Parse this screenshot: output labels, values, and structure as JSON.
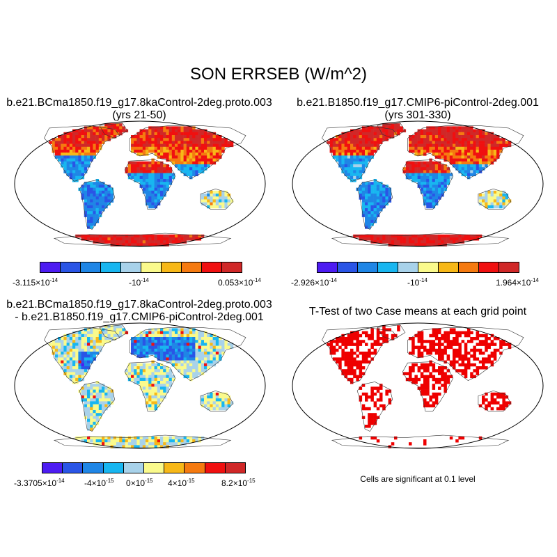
{
  "title": "SON ERRSEB (W/m^2)",
  "colors": [
    "#4d1cf2",
    "#2a55e6",
    "#1f86e6",
    "#18b6f0",
    "#a8d2ea",
    "#fafa8c",
    "#f7b818",
    "#f57a10",
    "#f01010",
    "#d02828"
  ],
  "sig_color": "#ee0000",
  "panels": [
    {
      "id": "case1",
      "title_line1": "b.e21.BCma1850.f19_g17.8kaControl-2deg.proto.003",
      "title_line2": "(yrs 21-50)",
      "colorbar": {
        "labels": [
          {
            "mant": "-3.115",
            "exp": "-14"
          },
          {
            "mant": "-10",
            "exp": "-14",
            "plain": true
          },
          {
            "mant": "0.053",
            "exp": "-14"
          }
        ]
      }
    },
    {
      "id": "case2",
      "title_line1": "b.e21.B1850.f19_g17.CMIP6-piControl-2deg.001",
      "title_line2": "(yrs 301-330)",
      "colorbar": {
        "labels": [
          {
            "mant": "-2.926",
            "exp": "-14"
          },
          {
            "mant": "-10",
            "exp": "-14",
            "plain": true
          },
          {
            "mant": "1.964",
            "exp": "-14"
          }
        ]
      }
    },
    {
      "id": "diff",
      "title_line1": "b.e21.BCma1850.f19_g17.8kaControl-2deg.proto.003",
      "title_line2": "- b.e21.B1850.f19_g17.CMIP6-piControl-2deg.001",
      "colorbar": {
        "labels": [
          {
            "mant": "-3.3705",
            "exp": "-14"
          },
          {
            "mant": "-4",
            "exp": "-15"
          },
          {
            "mant": "0",
            "exp": "-15"
          },
          {
            "mant": "4",
            "exp": "-15"
          },
          {
            "mant": "8.2",
            "exp": "-15"
          }
        ]
      }
    },
    {
      "id": "ttest",
      "title_line1": "T-Test of two Case means at each grid point",
      "note": "Cells are significant at 0.1 level"
    }
  ]
}
